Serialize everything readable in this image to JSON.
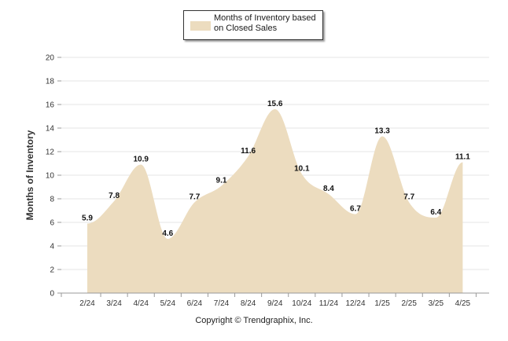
{
  "chart_data": {
    "type": "area",
    "categories": [
      "2/24",
      "3/24",
      "4/24",
      "5/24",
      "6/24",
      "7/24",
      "8/24",
      "9/24",
      "10/24",
      "11/24",
      "12/24",
      "1/25",
      "2/25",
      "3/25",
      "4/25"
    ],
    "series": [
      {
        "name": "Months of Inventory based on Closed Sales",
        "values": [
          5.9,
          7.8,
          10.9,
          4.6,
          7.7,
          9.1,
          11.6,
          15.6,
          10.1,
          8.4,
          6.7,
          13.3,
          7.7,
          6.4,
          11.1
        ],
        "color": "#ecdcbf"
      }
    ],
    "ylabel": "Months of Inventory",
    "xlabel": "",
    "ylim": [
      0,
      20
    ],
    "yticks": [
      "0",
      "2",
      "4",
      "6",
      "8",
      "10",
      "12",
      "14",
      "16",
      "18",
      "20"
    ],
    "grid": true,
    "legend_position": "top-center",
    "data_labels": [
      "5.9",
      "7.8",
      "10.9",
      "4.6",
      "7.7",
      "9.1",
      "11.6",
      "15.6",
      "10.1",
      "8.4",
      "6.7",
      "13.3",
      "7.7",
      "6.4",
      "11.1"
    ]
  },
  "footer": {
    "copyright": "Copyright © Trendgraphix, Inc."
  }
}
